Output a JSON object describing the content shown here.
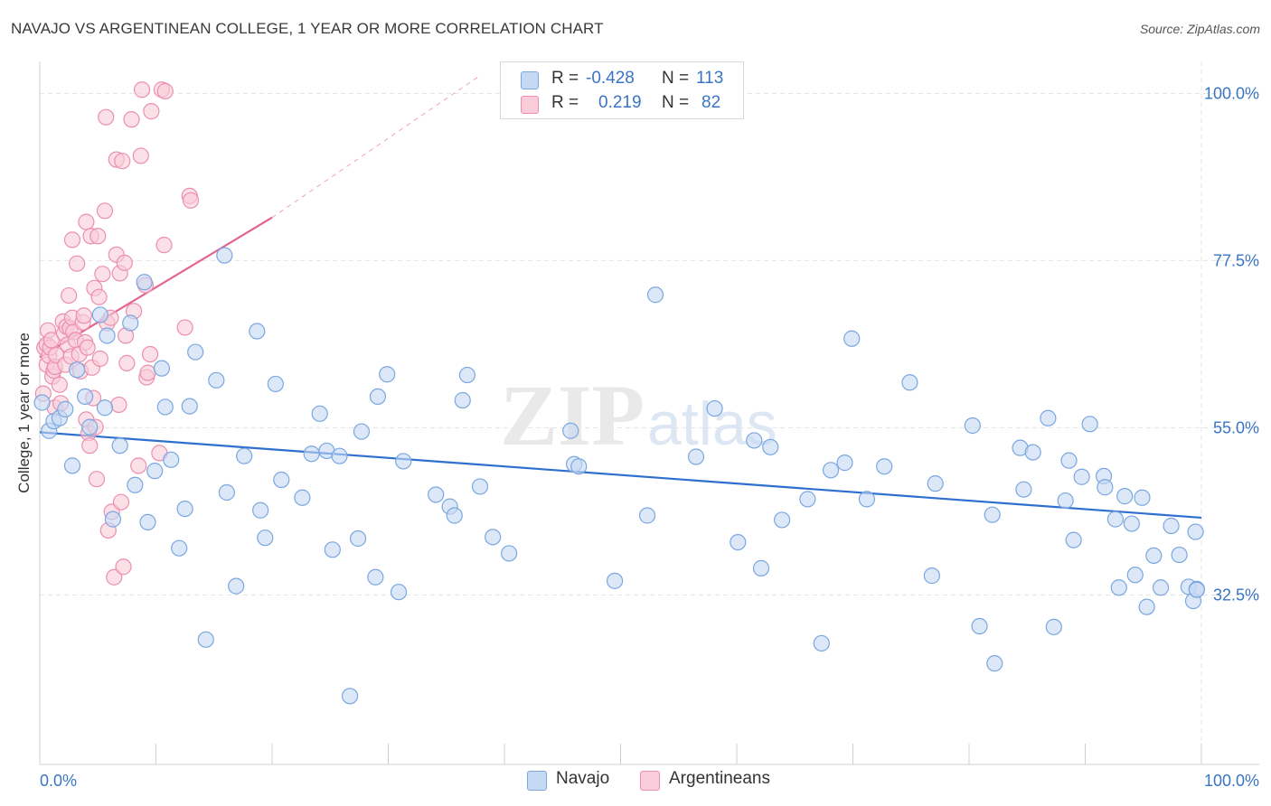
{
  "header": {
    "title": "NAVAJO VS ARGENTINEAN COLLEGE, 1 YEAR OR MORE CORRELATION CHART",
    "source": "Source: ZipAtlas.com"
  },
  "watermark": {
    "zip": "ZIP",
    "atlas": "atlas"
  },
  "legend": {
    "navajo": {
      "r_label": "R =",
      "r_value": "-0.428",
      "n_label": "N =",
      "n_value": "113"
    },
    "argentineans": {
      "r_label": "R =",
      "r_value": "0.219",
      "n_label": "N =",
      "n_value": "82"
    }
  },
  "colors": {
    "navajo_fill": "#c5d9f4",
    "navajo_stroke": "#7aa7e0",
    "navajo_line": "#2f6fcf",
    "arg_fill": "#f8ccd9",
    "arg_stroke": "#ec8fae",
    "arg_line": "#e3638f",
    "tick_label": "#3a74c4",
    "grid": "#e4e4e4"
  },
  "chart_data": {
    "type": "scatter",
    "title": "NAVAJO VS ARGENTINEAN COLLEGE, 1 YEAR OR MORE CORRELATION CHART",
    "xlabel": "",
    "ylabel": "College, 1 year or more",
    "xlim": [
      0,
      100
    ],
    "ylim": [
      9.7,
      104.3
    ],
    "x_tick_labels": [
      "0.0%",
      "100.0%"
    ],
    "y_ticks": [
      32.5,
      55.0,
      77.5,
      100.0
    ],
    "y_tick_labels": [
      "32.5%",
      "55.0%",
      "77.5%",
      "100.0%"
    ],
    "grid": true,
    "legend_position": "bottom",
    "series": [
      {
        "name": "Navajo",
        "r": -0.428,
        "n": 113,
        "trend": {
          "x": [
            0,
            100
          ],
          "y": [
            54.4,
            42.9
          ]
        },
        "points": [
          [
            0.2,
            58.4
          ],
          [
            0.8,
            54.6
          ],
          [
            1.2,
            55.9
          ],
          [
            1.7,
            56.3
          ],
          [
            2.2,
            57.5
          ],
          [
            2.8,
            49.9
          ],
          [
            3.2,
            62.8
          ],
          [
            3.9,
            59.2
          ],
          [
            4.3,
            55.1
          ],
          [
            5.2,
            70.2
          ],
          [
            5.6,
            57.7
          ],
          [
            5.8,
            67.4
          ],
          [
            6.3,
            42.7
          ],
          [
            6.9,
            52.6
          ],
          [
            7.8,
            69.1
          ],
          [
            8.2,
            47.3
          ],
          [
            9.0,
            74.6
          ],
          [
            9.3,
            42.3
          ],
          [
            9.9,
            49.2
          ],
          [
            10.5,
            63.0
          ],
          [
            10.8,
            57.8
          ],
          [
            11.3,
            50.7
          ],
          [
            12.0,
            38.8
          ],
          [
            12.5,
            44.1
          ],
          [
            12.9,
            57.9
          ],
          [
            13.4,
            65.2
          ],
          [
            14.3,
            26.5
          ],
          [
            15.2,
            61.4
          ],
          [
            15.9,
            78.2
          ],
          [
            16.1,
            46.3
          ],
          [
            16.9,
            33.7
          ],
          [
            17.6,
            51.2
          ],
          [
            18.7,
            68.0
          ],
          [
            19.0,
            43.9
          ],
          [
            19.4,
            40.2
          ],
          [
            20.3,
            60.9
          ],
          [
            20.8,
            48.0
          ],
          [
            22.6,
            45.6
          ],
          [
            23.4,
            51.5
          ],
          [
            24.1,
            56.9
          ],
          [
            24.7,
            51.9
          ],
          [
            25.2,
            38.6
          ],
          [
            25.8,
            51.2
          ],
          [
            26.7,
            18.9
          ],
          [
            27.4,
            40.1
          ],
          [
            27.7,
            54.5
          ],
          [
            28.9,
            34.9
          ],
          [
            29.1,
            59.2
          ],
          [
            29.9,
            62.2
          ],
          [
            30.9,
            32.9
          ],
          [
            31.3,
            50.5
          ],
          [
            34.1,
            46.0
          ],
          [
            35.3,
            44.4
          ],
          [
            35.7,
            43.2
          ],
          [
            36.4,
            58.7
          ],
          [
            36.8,
            62.1
          ],
          [
            37.9,
            47.1
          ],
          [
            39.0,
            40.3
          ],
          [
            40.4,
            38.1
          ],
          [
            45.7,
            54.6
          ],
          [
            46.0,
            50.1
          ],
          [
            46.4,
            49.8
          ],
          [
            49.5,
            34.4
          ],
          [
            52.3,
            43.2
          ],
          [
            53.0,
            72.9
          ],
          [
            56.5,
            51.1
          ],
          [
            58.1,
            57.6
          ],
          [
            60.1,
            39.6
          ],
          [
            61.5,
            53.3
          ],
          [
            62.1,
            36.1
          ],
          [
            62.9,
            52.4
          ],
          [
            63.9,
            42.6
          ],
          [
            66.1,
            45.4
          ],
          [
            67.3,
            26.0
          ],
          [
            68.1,
            49.3
          ],
          [
            69.3,
            50.3
          ],
          [
            69.9,
            67.0
          ],
          [
            71.2,
            45.4
          ],
          [
            72.7,
            49.8
          ],
          [
            74.9,
            61.1
          ],
          [
            76.8,
            35.1
          ],
          [
            77.1,
            47.5
          ],
          [
            80.3,
            55.3
          ],
          [
            80.9,
            28.3
          ],
          [
            82.0,
            43.3
          ],
          [
            82.2,
            23.3
          ],
          [
            84.4,
            52.3
          ],
          [
            84.7,
            46.7
          ],
          [
            85.5,
            51.7
          ],
          [
            86.8,
            56.3
          ],
          [
            87.3,
            28.2
          ],
          [
            88.3,
            45.2
          ],
          [
            88.6,
            50.6
          ],
          [
            89.0,
            39.9
          ],
          [
            89.7,
            48.4
          ],
          [
            90.4,
            55.5
          ],
          [
            91.6,
            48.5
          ],
          [
            91.7,
            47.0
          ],
          [
            92.6,
            42.7
          ],
          [
            92.9,
            33.5
          ],
          [
            93.4,
            45.8
          ],
          [
            94.0,
            42.1
          ],
          [
            94.3,
            35.2
          ],
          [
            94.9,
            45.6
          ],
          [
            95.3,
            30.9
          ],
          [
            95.9,
            37.8
          ],
          [
            96.5,
            33.5
          ],
          [
            97.4,
            41.8
          ],
          [
            98.1,
            37.9
          ],
          [
            98.9,
            33.6
          ],
          [
            99.3,
            31.7
          ],
          [
            99.5,
            41.0
          ],
          [
            99.6,
            33.3
          ],
          [
            99.6,
            33.2
          ]
        ]
      },
      {
        "name": "Argentineans",
        "r": 0.219,
        "n": 82,
        "trend": {
          "x": [
            0,
            20
          ],
          "y": [
            64.5,
            83.3
          ],
          "x_dashed": [
            20,
            38
          ],
          "y_dashed": [
            83.3,
            102.5
          ]
        },
        "points": [
          [
            0.3,
            59.6
          ],
          [
            0.4,
            65.8
          ],
          [
            0.6,
            63.5
          ],
          [
            0.6,
            66.2
          ],
          [
            0.7,
            68.1
          ],
          [
            0.8,
            64.7
          ],
          [
            0.9,
            65.8
          ],
          [
            1.0,
            66.8
          ],
          [
            1.1,
            61.9
          ],
          [
            1.2,
            62.7
          ],
          [
            1.3,
            57.7
          ],
          [
            1.3,
            63.2
          ],
          [
            1.4,
            64.8
          ],
          [
            1.7,
            60.8
          ],
          [
            1.8,
            58.3
          ],
          [
            2.0,
            69.3
          ],
          [
            2.1,
            67.7
          ],
          [
            2.2,
            63.5
          ],
          [
            2.3,
            68.6
          ],
          [
            2.4,
            66.2
          ],
          [
            2.5,
            72.8
          ],
          [
            2.6,
            68.4
          ],
          [
            2.7,
            64.6
          ],
          [
            2.8,
            80.3
          ],
          [
            2.8,
            69.8
          ],
          [
            2.9,
            67.9
          ],
          [
            3.1,
            66.8
          ],
          [
            3.2,
            77.1
          ],
          [
            3.4,
            64.9
          ],
          [
            3.5,
            62.6
          ],
          [
            3.7,
            69.2
          ],
          [
            3.8,
            70.1
          ],
          [
            3.9,
            66.5
          ],
          [
            4.0,
            82.7
          ],
          [
            4.0,
            56.1
          ],
          [
            4.1,
            65.8
          ],
          [
            4.2,
            54.3
          ],
          [
            4.3,
            52.6
          ],
          [
            4.4,
            80.8
          ],
          [
            4.5,
            63.1
          ],
          [
            4.6,
            59.0
          ],
          [
            4.7,
            73.8
          ],
          [
            4.8,
            55.1
          ],
          [
            4.9,
            48.1
          ],
          [
            5.0,
            80.8
          ],
          [
            5.1,
            72.6
          ],
          [
            5.2,
            64.3
          ],
          [
            5.4,
            75.7
          ],
          [
            5.6,
            84.2
          ],
          [
            5.7,
            96.8
          ],
          [
            5.8,
            69.1
          ],
          [
            5.9,
            41.2
          ],
          [
            6.1,
            69.8
          ],
          [
            6.2,
            43.7
          ],
          [
            6.4,
            34.9
          ],
          [
            6.6,
            91.1
          ],
          [
            6.6,
            78.3
          ],
          [
            6.8,
            58.1
          ],
          [
            6.9,
            75.8
          ],
          [
            7.0,
            45.0
          ],
          [
            7.1,
            90.9
          ],
          [
            7.2,
            36.3
          ],
          [
            7.3,
            77.2
          ],
          [
            7.4,
            67.4
          ],
          [
            7.5,
            63.7
          ],
          [
            7.9,
            96.5
          ],
          [
            8.1,
            70.7
          ],
          [
            8.5,
            49.9
          ],
          [
            8.7,
            91.6
          ],
          [
            8.8,
            100.5
          ],
          [
            9.1,
            74.2
          ],
          [
            9.2,
            61.8
          ],
          [
            9.3,
            62.4
          ],
          [
            9.5,
            64.9
          ],
          [
            9.6,
            97.6
          ],
          [
            10.3,
            51.6
          ],
          [
            10.5,
            100.5
          ],
          [
            10.7,
            79.6
          ],
          [
            10.8,
            100.3
          ],
          [
            12.5,
            68.5
          ],
          [
            12.9,
            86.2
          ],
          [
            13.0,
            85.6
          ]
        ]
      }
    ]
  },
  "bottom_legend": {
    "navajo": "Navajo",
    "argentineans": "Argentineans"
  }
}
